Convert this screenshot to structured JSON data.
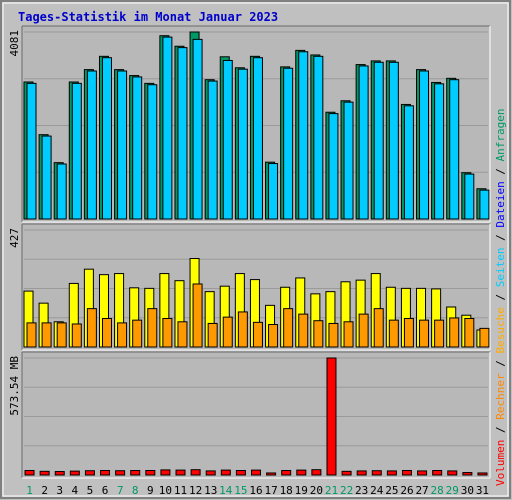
{
  "chart_data": {
    "type": "bar",
    "title": "Tages-Statistik im Monat Januar 2023",
    "colors": {
      "background": "#c0c0c0",
      "panel": "#b8b8b8",
      "title": "#0000cc",
      "anfragen": "#009966",
      "dateien": "#00ccff",
      "seiten": "#ffff00",
      "besuche": "#ff9900",
      "rechner": "#ff8800",
      "volumen": "#ff0000",
      "weekend": "#009966",
      "weekday": "#000000"
    },
    "legend_right": [
      {
        "label": "Volumen",
        "color": "#ff0000"
      },
      {
        "label": " / ",
        "color": "#000000"
      },
      {
        "label": "Rechner",
        "color": "#ff8800"
      },
      {
        "label": " / ",
        "color": "#000000"
      },
      {
        "label": "Besuche",
        "color": "#ffaa00"
      },
      {
        "label": " / ",
        "color": "#000000"
      },
      {
        "label": "Seiten",
        "color": "#00ccff"
      },
      {
        "label": " / ",
        "color": "#000000"
      },
      {
        "label": "Dateien",
        "color": "#0000ff"
      },
      {
        "label": " / ",
        "color": "#000000"
      },
      {
        "label": "Anfragen",
        "color": "#009966"
      }
    ],
    "days": [
      "1",
      "2",
      "3",
      "4",
      "5",
      "6",
      "7",
      "8",
      "9",
      "10",
      "11",
      "12",
      "13",
      "14",
      "15",
      "16",
      "17",
      "18",
      "19",
      "20",
      "21",
      "22",
      "23",
      "24",
      "25",
      "26",
      "27",
      "28",
      "29",
      "30",
      "31"
    ],
    "weekend_days": [
      "1",
      "7",
      "8",
      "14",
      "15",
      "21",
      "22",
      "28",
      "29"
    ],
    "panels": [
      {
        "ylabel": "4081",
        "ymax": 4081,
        "series": [
          {
            "name": "Anfragen",
            "values": [
              2990,
              1840,
              1230,
              2990,
              3260,
              3550,
              3260,
              3130,
              2960,
              4000,
              3770,
              4081,
              3040,
              3540,
              3300,
              3550,
              1240,
              3320,
              3680,
              3580,
              2330,
              2580,
              3370,
              3450,
              3450,
              2500,
              3260,
              2980,
              3070,
              1010,
              660
            ]
          },
          {
            "name": "Dateien",
            "values": [
              2960,
              1810,
              1200,
              2960,
              3230,
              3520,
              3230,
              3100,
              2930,
              3970,
              3740,
              3920,
              3010,
              3460,
              3270,
              3520,
              1210,
              3290,
              3650,
              3550,
              2300,
              2550,
              3340,
              3420,
              3420,
              2470,
              3230,
              2950,
              3040,
              980,
              630
            ]
          }
        ]
      },
      {
        "ylabel": "427",
        "ymax": 427,
        "series": [
          {
            "name": "Seiten",
            "values": [
              204,
              160,
              92,
              232,
              284,
              264,
              268,
              216,
              214,
              268,
              242,
              323,
              202,
              222,
              268,
              246,
              152,
              218,
              252,
              194,
              202,
              238,
              244,
              268,
              218,
              214,
              214,
              212,
              146,
              116,
              62
            ]
          },
          {
            "name": "Besuche",
            "values": [
              88,
              88,
              88,
              84,
              140,
              104,
              88,
              98,
              140,
              104,
              92,
              230,
              86,
              109,
              128,
              90,
              82,
              140,
              120,
              96,
              86,
              92,
              120,
              140,
              98,
              104,
              98,
              98,
              106,
              104,
              68
            ]
          }
        ]
      },
      {
        "ylabel": "573.54 MB",
        "ymax": 573.54,
        "series": [
          {
            "name": "Volumen",
            "values": [
              22,
              18,
              17,
              19,
              21,
              22,
              21,
              22,
              22,
              25,
              24,
              26,
              20,
              24,
              22,
              24,
              10,
              22,
              24,
              26,
              573.54,
              18,
              20,
              21,
              20,
              22,
              20,
              22,
              20,
              12,
              10
            ]
          }
        ]
      }
    ]
  }
}
